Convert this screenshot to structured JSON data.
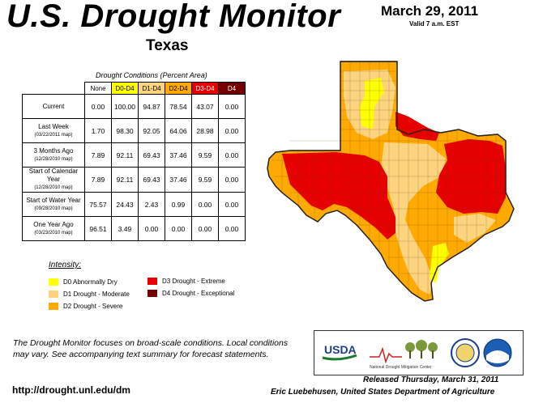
{
  "title": "U.S. Drought Monitor",
  "date": "March 29, 2011",
  "valid": "Valid 7 a.m. EST",
  "state": "Texas",
  "table": {
    "caption": "Drought Conditions (Percent Area)",
    "headers": [
      "None",
      "D0-D4",
      "D1-D4",
      "D2-D4",
      "D3-D4",
      "D4"
    ],
    "header_colors": [
      "#ffffff",
      "#ffff00",
      "#fcd37f",
      "#ffaa00",
      "#e60000",
      "#730000"
    ],
    "rows": [
      {
        "label": "Current",
        "sub": "",
        "values": [
          "0.00",
          "100.00",
          "94.87",
          "78.54",
          "43.07",
          "0.00"
        ]
      },
      {
        "label": "Last Week",
        "sub": "(03/22/2011 map)",
        "values": [
          "1.70",
          "98.30",
          "92.05",
          "64.06",
          "28.98",
          "0.00"
        ]
      },
      {
        "label": "3 Months Ago",
        "sub": "(12/28/2010 map)",
        "values": [
          "7.89",
          "92.11",
          "69.43",
          "37.46",
          "9.59",
          "0.00"
        ]
      },
      {
        "label": "Start of Calendar Year",
        "sub": "(12/28/2010 map)",
        "values": [
          "7.89",
          "92.11",
          "69.43",
          "37.46",
          "9.59",
          "0.00"
        ]
      },
      {
        "label": "Start of Water Year",
        "sub": "(09/28/2010 map)",
        "values": [
          "75.57",
          "24.43",
          "2.43",
          "0.99",
          "0.00",
          "0.00"
        ]
      },
      {
        "label": "One Year Ago",
        "sub": "(03/23/2010 map)",
        "values": [
          "96.51",
          "3.49",
          "0.00",
          "0.00",
          "0.00",
          "0.00"
        ]
      }
    ]
  },
  "legend": {
    "heading": "Intensity:",
    "items": [
      {
        "label": "D0 Abnormally Dry",
        "color": "#ffff00"
      },
      {
        "label": "D1 Drought - Moderate",
        "color": "#fcd37f"
      },
      {
        "label": "D2 Drought - Severe",
        "color": "#ffaa00"
      },
      {
        "label": "D3 Drought - Extreme",
        "color": "#e60000"
      },
      {
        "label": "D4 Drought - Exceptional",
        "color": "#730000"
      }
    ]
  },
  "note": "The Drought Monitor focuses on broad-scale conditions. Local conditions may vary. See accompanying text summary for forecast statements.",
  "url": "http://drought.unl.edu/dm",
  "released": "Released Thursday, March 31, 2011",
  "author": "Eric Luebehusen, United States Department of Agriculture",
  "logos": {
    "usda": "USDA",
    "ndmc": "National Drought Mitigation Center"
  },
  "map_colors": {
    "d0": "#ffff00",
    "d1": "#fcd37f",
    "d2": "#ffaa00",
    "d3": "#e60000",
    "county_line": "#5a3a00"
  }
}
